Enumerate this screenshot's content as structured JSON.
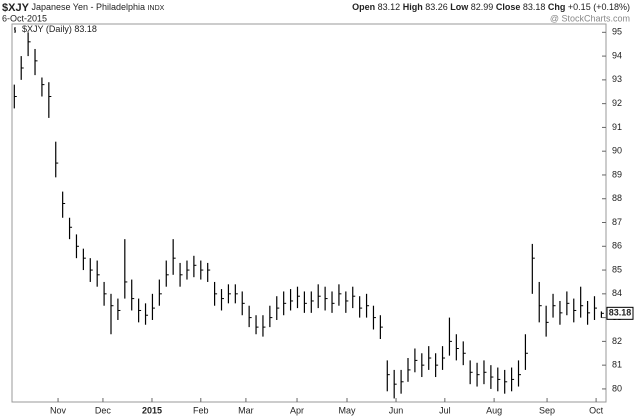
{
  "chart_data": {
    "type": "ohlc",
    "symbol": "$XJY",
    "name": "Japanese Yen - Philadelphia",
    "exchange": "INDX",
    "date": "6-Oct-2015",
    "watermark": "@ StockCharts.com",
    "legend_label": "$XJY (Daily)",
    "quote": {
      "open_label": "Open",
      "open": 83.12,
      "high_label": "High",
      "high": 83.26,
      "low_label": "Low",
      "low": 82.99,
      "close_label": "Close",
      "close": 83.18,
      "chg_label": "Chg",
      "chg": {
        "value": 0.15,
        "label": "+0.15"
      },
      "chg_pct": {
        "value": 0.18,
        "label": "(+0.18%)"
      }
    },
    "color": "#000000",
    "grid": false,
    "xlim": [
      0,
      258
    ],
    "ylim": [
      79.45,
      95.35
    ],
    "yticks": [
      80,
      81,
      82,
      83,
      84,
      85,
      86,
      87,
      88,
      89,
      90,
      91,
      92,
      93,
      94,
      95
    ],
    "xticks": [
      {
        "value": 20,
        "label": "Nov"
      },
      {
        "value": 39.5,
        "label": "Dec"
      },
      {
        "value": 60.8,
        "label": "2015"
      },
      {
        "value": 82,
        "label": "Feb"
      },
      {
        "value": 101.6,
        "label": "Mar"
      },
      {
        "value": 123.8,
        "label": "Apr"
      },
      {
        "value": 145.5,
        "label": "May"
      },
      {
        "value": 166.8,
        "label": "Jun"
      },
      {
        "value": 188,
        "label": "Jul"
      },
      {
        "value": 209.4,
        "label": "Aug"
      },
      {
        "value": 232.4,
        "label": "Sep"
      },
      {
        "value": 253.7,
        "label": "Oct"
      }
    ],
    "x": [
      1,
      4,
      7,
      10,
      13,
      16,
      19,
      22,
      25,
      28,
      31,
      34,
      37,
      40,
      43,
      46,
      49,
      52,
      55,
      58,
      61,
      64,
      67,
      70,
      73,
      76,
      79,
      82,
      85,
      88,
      91,
      94,
      97,
      100,
      103,
      106,
      109,
      112,
      115,
      118,
      121,
      124,
      127,
      130,
      133,
      136,
      139,
      142,
      145,
      148,
      151,
      154,
      157,
      160,
      163,
      166,
      169,
      172,
      175,
      178,
      181,
      184,
      187,
      190,
      193,
      196,
      199,
      202,
      205,
      208,
      211,
      214,
      217,
      220,
      223,
      226,
      229,
      232,
      235,
      238,
      241,
      244,
      247,
      250,
      253,
      256
    ],
    "high": [
      92.8,
      94,
      95,
      94.3,
      93.1,
      92.9,
      90.4,
      88.3,
      87.2,
      86.5,
      85.9,
      85.5,
      85.4,
      84.5,
      84,
      83.8,
      86.3,
      84.6,
      83.8,
      83.6,
      84,
      84.6,
      85.4,
      86.3,
      85.3,
      85.4,
      85.6,
      85.4,
      85.3,
      84.5,
      84.2,
      84.4,
      84.4,
      84.1,
      83.5,
      83.1,
      83.1,
      83.5,
      83.9,
      84.1,
      84.2,
      84.3,
      84.1,
      84.1,
      84.4,
      84.3,
      84.1,
      84.4,
      84.1,
      84.3,
      83.9,
      84,
      83.5,
      83.1,
      81.2,
      80.8,
      80.8,
      81.3,
      81.7,
      81.5,
      81.8,
      81.5,
      81.8,
      83,
      82.3,
      82,
      81.2,
      81.1,
      81.2,
      81,
      80.9,
      80.8,
      80.9,
      81.2,
      82.3,
      86.1,
      84.5,
      83.5,
      84,
      83.7,
      84.1,
      83.8,
      84.3,
      83.7,
      83.9,
      83.26
    ],
    "low": [
      91.8,
      93,
      94,
      93.2,
      92.3,
      91.4,
      88.9,
      87.2,
      86.3,
      85.5,
      85,
      84.5,
      84.3,
      83.5,
      82.3,
      82.9,
      83.8,
      83.3,
      82.8,
      82.7,
      82.9,
      83.5,
      84.3,
      84.8,
      84.3,
      84.6,
      84.7,
      84.6,
      84.5,
      83.5,
      83.3,
      83.6,
      83.6,
      83.1,
      82.6,
      82.3,
      82.2,
      82.6,
      82.9,
      83.1,
      83.3,
      83.4,
      83.2,
      83.2,
      83.4,
      83.3,
      83.2,
      83.5,
      83.2,
      83.4,
      83,
      83,
      82.5,
      82.1,
      79.9,
      79.6,
      79.8,
      80.3,
      80.7,
      80.5,
      80.8,
      80.5,
      80.8,
      81.4,
      81.2,
      81,
      80.2,
      80.1,
      80.2,
      80,
      79.9,
      79.8,
      79.9,
      80.1,
      80.8,
      84,
      82.8,
      82.2,
      83,
      82.7,
      83.1,
      82.8,
      83,
      82.7,
      82.9,
      82.99
    ],
    "close": [
      92.3,
      93.5,
      94.6,
      93.8,
      92.8,
      92.3,
      89.5,
      87.8,
      86.8,
      86,
      85.5,
      85,
      84.8,
      84,
      83.5,
      83.3,
      84.5,
      83.8,
      83.3,
      83.1,
      83.4,
      84,
      84.8,
      85.5,
      84.8,
      85,
      85.2,
      85,
      85,
      84,
      83.8,
      84,
      84,
      83.6,
      83,
      82.6,
      82.6,
      83,
      83.4,
      83.6,
      83.7,
      83.9,
      83.6,
      83.7,
      83.9,
      83.8,
      83.6,
      84,
      83.7,
      83.9,
      83.4,
      83.5,
      83,
      82.6,
      80.6,
      80.2,
      80.3,
      80.8,
      81.2,
      81,
      81.3,
      81,
      81.3,
      82,
      81.7,
      81.5,
      80.7,
      80.6,
      80.7,
      80.5,
      80.4,
      80.3,
      80.4,
      80.6,
      81.5,
      85.5,
      83.5,
      82.8,
      83.5,
      83.2,
      83.6,
      83.3,
      83.5,
      83.2,
      83.4,
      83.18
    ]
  }
}
